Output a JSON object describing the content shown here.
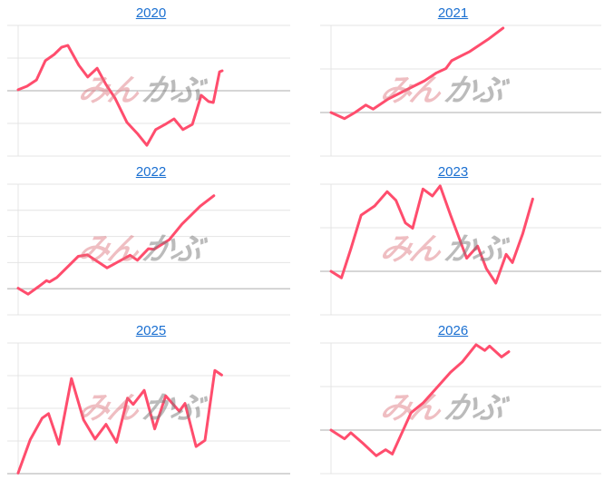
{
  "colors": {
    "line": "#ff4d6d",
    "grid": "#e4e4e4",
    "baseline": "#c8c8c8",
    "title": "#1a6fd1"
  },
  "watermark": {
    "left": "みん",
    "right": "かぶ"
  },
  "chart_data": [
    {
      "type": "line",
      "title": "2020",
      "xlim": [
        0,
        52
      ],
      "ylim": [
        -2,
        2
      ],
      "grid": true,
      "x": [
        0,
        1.7,
        3.5,
        5.2,
        6.9,
        8.3,
        9.5,
        11.6,
        13.3,
        15.1,
        16.8,
        18.5,
        20.8,
        22.9,
        24.6,
        26.3,
        28.1,
        29.8,
        31.5,
        33.3,
        35,
        36.4,
        37.3,
        38.5,
        39
      ],
      "y": [
        0.03,
        0.14,
        0.33,
        0.92,
        1.11,
        1.33,
        1.39,
        0.78,
        0.42,
        0.69,
        0.19,
        -0.22,
        -0.97,
        -1.33,
        -1.67,
        -1.19,
        -1.03,
        -0.86,
        -1.19,
        -1.03,
        -0.14,
        -0.33,
        -0.36,
        0.58,
        0.61
      ]
    },
    {
      "type": "line",
      "title": "2021",
      "xlim": [
        0,
        52
      ],
      "ylim": [
        -1,
        2
      ],
      "grid": true,
      "x": [
        0,
        2.6,
        4.6,
        6.7,
        8.1,
        11,
        14.5,
        18,
        20.3,
        22.1,
        23.2,
        26.7,
        30.2,
        33.1
      ],
      "y": [
        0,
        -0.14,
        0,
        0.17,
        0.08,
        0.31,
        0.52,
        0.73,
        0.91,
        1.01,
        1.19,
        1.4,
        1.68,
        1.94
      ]
    },
    {
      "type": "line",
      "title": "2022",
      "xlim": [
        0,
        52
      ],
      "ylim": [
        -1,
        4
      ],
      "grid": true,
      "x": [
        0,
        1.9,
        3.9,
        5.4,
        6,
        7.4,
        11.5,
        13.2,
        17,
        21.4,
        22.8,
        24.9,
        26,
        28.9,
        31.3,
        34.8,
        37.4
      ],
      "y": [
        0.02,
        -0.21,
        0.08,
        0.31,
        0.26,
        0.43,
        1.24,
        1.3,
        0.8,
        1.28,
        1.09,
        1.53,
        1.51,
        1.88,
        2.47,
        3.16,
        3.56
      ]
    },
    {
      "type": "line",
      "title": "2023",
      "xlim": [
        0,
        52
      ],
      "ylim": [
        -1,
        2
      ],
      "grid": true,
      "x": [
        0,
        2,
        3.8,
        5.8,
        8.4,
        10.8,
        12.5,
        14.3,
        15.7,
        17.7,
        19.5,
        21,
        23,
        26.1,
        28.2,
        29.9,
        31.7,
        33.7,
        34.9,
        36.9,
        38.8
      ],
      "y": [
        0,
        -0.15,
        0.51,
        1.29,
        1.5,
        1.83,
        1.63,
        1.11,
        0.99,
        1.89,
        1.73,
        1.96,
        1.29,
        0.3,
        0.58,
        0.06,
        -0.27,
        0.39,
        0.2,
        0.87,
        1.66
      ]
    },
    {
      "type": "line",
      "title": "2025",
      "xlim": [
        0,
        52
      ],
      "ylim": [
        0,
        4
      ],
      "grid": true,
      "x": [
        0,
        2.3,
        4.6,
        5.8,
        7.8,
        10.2,
        12.5,
        14.7,
        16.8,
        18.8,
        20.9,
        22,
        24.1,
        26.1,
        28.2,
        30.8,
        31.9,
        34,
        35.7,
        37.6,
        38.9
      ],
      "y": [
        0.02,
        1.04,
        1.7,
        1.84,
        0.9,
        2.91,
        1.65,
        1.06,
        1.51,
        0.96,
        2.31,
        2.12,
        2.55,
        1.37,
        2.38,
        1.91,
        2.15,
        0.83,
        1.02,
        3.16,
        3.02
      ]
    },
    {
      "type": "line",
      "title": "2026",
      "xlim": [
        0,
        52
      ],
      "ylim": [
        -1,
        2
      ],
      "grid": true,
      "x": [
        0,
        2.6,
        3.8,
        6.1,
        8.7,
        10.5,
        11.8,
        15.4,
        17.7,
        20.1,
        23,
        25.3,
        27.9,
        29.6,
        30.5,
        32.8,
        34.2
      ],
      "y": [
        0,
        -0.2,
        -0.06,
        -0.3,
        -0.59,
        -0.45,
        -0.55,
        0.4,
        0.62,
        0.94,
        1.33,
        1.57,
        1.96,
        1.83,
        1.93,
        1.68,
        1.8
      ]
    }
  ]
}
